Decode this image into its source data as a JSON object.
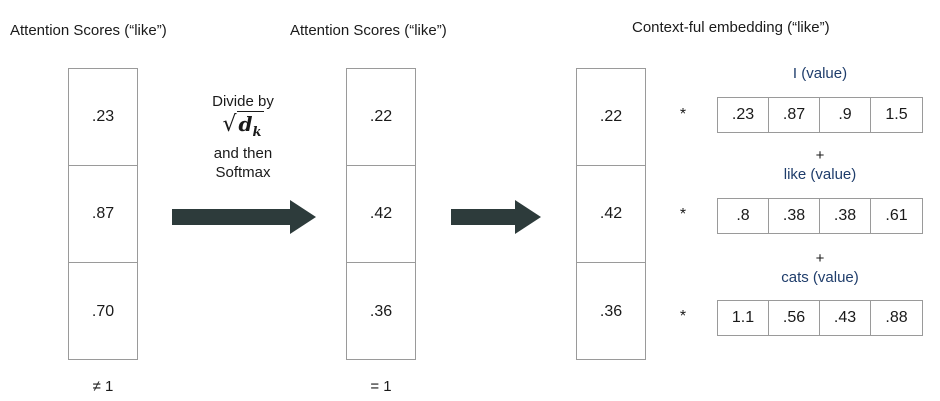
{
  "titles": {
    "left": "Attention Scores (“like”)",
    "middle": "Attention Scores (“like”)",
    "right": "Context-ful embedding (“like”)"
  },
  "left_scores": [
    ".23",
    ".87",
    ".70"
  ],
  "middle_scores": [
    ".22",
    ".42",
    ".36"
  ],
  "right_scores": [
    ".22",
    ".42",
    ".36"
  ],
  "left_footer": "≠ 1",
  "middle_footer": "= 1",
  "step": {
    "line1": "Divide by",
    "sqrt_symbol": "d",
    "sqrt_sub": "k",
    "line3": "and then",
    "line4": "Softmax"
  },
  "multiply_symbol": "*",
  "plus_symbol": "+",
  "value_vectors": [
    {
      "label": "I (value)",
      "values": [
        ".23",
        ".87",
        ".9",
        "1.5"
      ]
    },
    {
      "label": "like (value)",
      "values": [
        ".8",
        ".38",
        ".38",
        ".61"
      ]
    },
    {
      "label": "cats (value)",
      "values": [
        "1.1",
        ".56",
        ".43",
        ".88"
      ]
    }
  ],
  "colors": {
    "arrow_fill": "#2d3b3b",
    "value_label": "#1f3d6b",
    "border": "#9a9a9a"
  }
}
